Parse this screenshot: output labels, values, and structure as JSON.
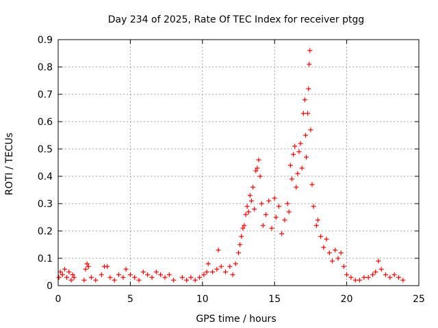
{
  "chart_data": {
    "type": "scatter",
    "title": "Day 234 of 2025, Rate Of TEC Index for receiver ptgg",
    "xlabel": "GPS time / hours",
    "ylabel": "ROTI / TECUs",
    "xlim": [
      0,
      25
    ],
    "ylim": [
      0,
      0.9
    ],
    "xticks": [
      0,
      5,
      10,
      15,
      20,
      25
    ],
    "yticks": [
      0,
      0.1,
      0.2,
      0.3,
      0.4,
      0.5,
      0.6,
      0.7,
      0.8,
      0.9
    ],
    "grid": true,
    "marker": "+",
    "color": "#ff0000",
    "series": [
      {
        "name": "ROTI",
        "points": [
          [
            0.05,
            0.03
          ],
          [
            0.15,
            0.05
          ],
          [
            0.3,
            0.04
          ],
          [
            0.45,
            0.06
          ],
          [
            0.6,
            0.03
          ],
          [
            0.75,
            0.05
          ],
          [
            0.9,
            0.02
          ],
          [
            1.0,
            0.04
          ],
          [
            1.1,
            0.03
          ],
          [
            1.8,
            0.02
          ],
          [
            1.9,
            0.06
          ],
          [
            2.0,
            0.08
          ],
          [
            2.1,
            0.07
          ],
          [
            2.3,
            0.03
          ],
          [
            2.6,
            0.02
          ],
          [
            3.0,
            0.04
          ],
          [
            3.2,
            0.07
          ],
          [
            3.4,
            0.07
          ],
          [
            3.6,
            0.03
          ],
          [
            3.9,
            0.02
          ],
          [
            4.2,
            0.04
          ],
          [
            4.5,
            0.03
          ],
          [
            4.7,
            0.06
          ],
          [
            5.0,
            0.04
          ],
          [
            5.3,
            0.03
          ],
          [
            5.6,
            0.02
          ],
          [
            5.9,
            0.05
          ],
          [
            6.2,
            0.04
          ],
          [
            6.5,
            0.03
          ],
          [
            6.8,
            0.05
          ],
          [
            7.1,
            0.04
          ],
          [
            7.4,
            0.03
          ],
          [
            7.7,
            0.04
          ],
          [
            8.0,
            0.02
          ],
          [
            8.6,
            0.03
          ],
          [
            8.9,
            0.02
          ],
          [
            9.2,
            0.03
          ],
          [
            9.5,
            0.02
          ],
          [
            9.8,
            0.03
          ],
          [
            10.1,
            0.04
          ],
          [
            10.3,
            0.05
          ],
          [
            10.4,
            0.08
          ],
          [
            10.7,
            0.05
          ],
          [
            11.0,
            0.06
          ],
          [
            11.1,
            0.13
          ],
          [
            11.3,
            0.07
          ],
          [
            11.6,
            0.05
          ],
          [
            11.9,
            0.07
          ],
          [
            12.1,
            0.04
          ],
          [
            12.3,
            0.08
          ],
          [
            12.5,
            0.12
          ],
          [
            12.6,
            0.15
          ],
          [
            12.7,
            0.18
          ],
          [
            12.8,
            0.21
          ],
          [
            12.9,
            0.22
          ],
          [
            13.0,
            0.26
          ],
          [
            13.1,
            0.29
          ],
          [
            13.2,
            0.27
          ],
          [
            13.3,
            0.33
          ],
          [
            13.4,
            0.31
          ],
          [
            13.5,
            0.36
          ],
          [
            13.6,
            0.28
          ],
          [
            13.7,
            0.42
          ],
          [
            13.8,
            0.43
          ],
          [
            13.9,
            0.46
          ],
          [
            14.0,
            0.4
          ],
          [
            14.1,
            0.3
          ],
          [
            14.2,
            0.22
          ],
          [
            14.4,
            0.26
          ],
          [
            14.6,
            0.31
          ],
          [
            14.8,
            0.21
          ],
          [
            15.0,
            0.32
          ],
          [
            15.1,
            0.25
          ],
          [
            15.3,
            0.29
          ],
          [
            15.5,
            0.19
          ],
          [
            15.7,
            0.24
          ],
          [
            15.9,
            0.3
          ],
          [
            16.0,
            0.27
          ],
          [
            16.1,
            0.44
          ],
          [
            16.2,
            0.39
          ],
          [
            16.3,
            0.48
          ],
          [
            16.4,
            0.51
          ],
          [
            16.5,
            0.36
          ],
          [
            16.6,
            0.41
          ],
          [
            16.7,
            0.49
          ],
          [
            16.8,
            0.52
          ],
          [
            16.9,
            0.43
          ],
          [
            17.0,
            0.63
          ],
          [
            17.1,
            0.68
          ],
          [
            17.15,
            0.55
          ],
          [
            17.2,
            0.47
          ],
          [
            17.3,
            0.63
          ],
          [
            17.35,
            0.72
          ],
          [
            17.4,
            0.81
          ],
          [
            17.45,
            0.86
          ],
          [
            17.5,
            0.57
          ],
          [
            17.6,
            0.37
          ],
          [
            17.7,
            0.29
          ],
          [
            17.9,
            0.22
          ],
          [
            18.0,
            0.24
          ],
          [
            18.2,
            0.18
          ],
          [
            18.4,
            0.14
          ],
          [
            18.6,
            0.17
          ],
          [
            18.8,
            0.12
          ],
          [
            19.0,
            0.09
          ],
          [
            19.2,
            0.13
          ],
          [
            19.4,
            0.1
          ],
          [
            19.6,
            0.12
          ],
          [
            19.8,
            0.07
          ],
          [
            20.0,
            0.04
          ],
          [
            20.3,
            0.03
          ],
          [
            20.6,
            0.02
          ],
          [
            20.9,
            0.02
          ],
          [
            21.2,
            0.03
          ],
          [
            21.5,
            0.03
          ],
          [
            21.8,
            0.04
          ],
          [
            22.0,
            0.05
          ],
          [
            22.2,
            0.09
          ],
          [
            22.4,
            0.06
          ],
          [
            22.7,
            0.04
          ],
          [
            23.0,
            0.03
          ],
          [
            23.3,
            0.04
          ],
          [
            23.6,
            0.03
          ],
          [
            23.9,
            0.02
          ]
        ]
      }
    ]
  }
}
